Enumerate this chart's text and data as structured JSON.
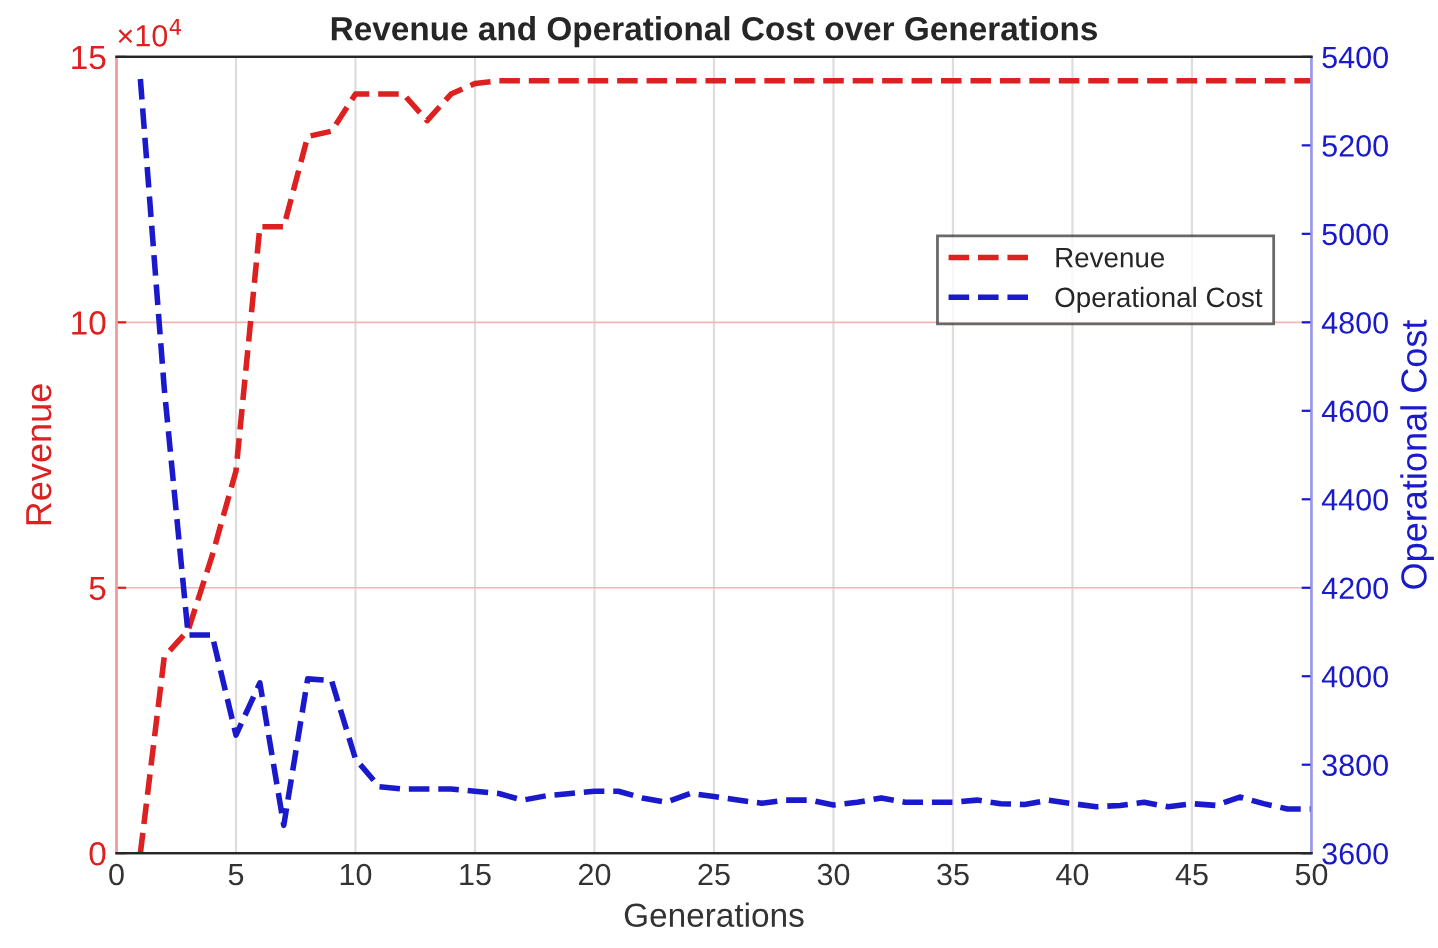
{
  "chart_data": {
    "type": "line",
    "title": "Revenue and Operational Cost over Generations",
    "xlabel": "Generations",
    "ylabel": "Revenue",
    "y2label": "Operational Cost",
    "x": [
      1,
      2,
      3,
      4,
      5,
      6,
      7,
      8,
      9,
      10,
      11,
      12,
      13,
      14,
      15,
      16,
      17,
      18,
      19,
      20,
      21,
      22,
      23,
      24,
      25,
      26,
      27,
      28,
      29,
      30,
      31,
      32,
      33,
      34,
      35,
      36,
      37,
      38,
      39,
      40,
      41,
      42,
      43,
      44,
      45,
      46,
      47,
      48,
      49,
      50
    ],
    "series": [
      {
        "name": "Revenue",
        "color": "#dd2020",
        "values": [
          0,
          3.7,
          4.2,
          5.6,
          7.2,
          11.8,
          11.8,
          13.5,
          13.6,
          14.3,
          14.3,
          14.3,
          13.8,
          14.3,
          14.5,
          14.55,
          14.55,
          14.55,
          14.55,
          14.55,
          14.55,
          14.55,
          14.55,
          14.55,
          14.55,
          14.55,
          14.55,
          14.55,
          14.55,
          14.55,
          14.55,
          14.55,
          14.55,
          14.55,
          14.55,
          14.55,
          14.55,
          14.55,
          14.55,
          14.55,
          14.55,
          14.55,
          14.55,
          14.55,
          14.55,
          14.55,
          14.55,
          14.55,
          14.55,
          14.55
        ]
      },
      {
        "name": "Operational Cost",
        "color": "#1a1acc",
        "axis": "y2",
        "values": [
          5350,
          4650,
          4093,
          4093,
          3867,
          3985,
          3663,
          3994,
          3990,
          3813,
          3750,
          3745,
          3745,
          3745,
          3740,
          3735,
          3720,
          3730,
          3735,
          3740,
          3740,
          3725,
          3715,
          3735,
          3728,
          3720,
          3713,
          3720,
          3720,
          3709,
          3715,
          3725,
          3715,
          3715,
          3715,
          3720,
          3712,
          3710,
          3720,
          3712,
          3705,
          3708,
          3715,
          3705,
          3712,
          3708,
          3727,
          3712,
          3700,
          3700
        ]
      }
    ],
    "xlim": [
      0,
      50
    ],
    "xticks": [
      0,
      5,
      10,
      15,
      20,
      25,
      30,
      35,
      40,
      45,
      50
    ],
    "ylim": [
      0,
      15
    ],
    "yticks": [
      0,
      5,
      10,
      15
    ],
    "annotations": [
      "×10$^{4}$"
    ],
    "y2lim": [
      3600,
      5400
    ],
    "y2ticks": [
      3600,
      3800,
      4000,
      4200,
      4400,
      4600,
      4800,
      5000,
      5200,
      5400
    ],
    "grid": true,
    "legend": "right",
    "line_style": "dashed",
    "marker": "none"
  }
}
